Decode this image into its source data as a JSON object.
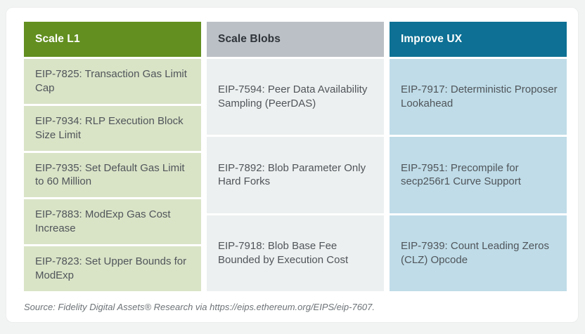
{
  "page": {
    "background": "#f2f4f3",
    "card_background": "#ffffff"
  },
  "columns": [
    {
      "header": "Scale L1",
      "header_bg": "#628f1f",
      "header_color": "#ffffff",
      "cell_bg": "#d9e3c6",
      "items": [
        "EIP-7825: Transaction Gas Limit Cap",
        "EIP-7934: RLP Execution Block Size Limit",
        "EIP-7935: Set Default Gas Limit to 60 Million",
        "EIP-7883: ModExp Gas Cost Increase",
        "EIP-7823: Set Upper Bounds for ModExp"
      ]
    },
    {
      "header": "Scale Blobs",
      "header_bg": "#bbc0c6",
      "header_color": "#2f343a",
      "cell_bg": "#edf0f0",
      "items": [
        "EIP-7594: Peer Data Availability Sampling (PeerDAS)",
        "EIP-7892: Blob Parameter Only Hard Forks",
        "EIP-7918: Blob Base Fee Bounded by Execution Cost"
      ]
    },
    {
      "header": "Improve UX",
      "header_bg": "#0d7094",
      "header_color": "#ffffff",
      "cell_bg": "#bfdce8",
      "items": [
        "EIP-7917: Deterministic Proposer Lookahead",
        "EIP-7951: Precompile for secp256r1 Curve Support",
        "EIP-7939: Count Leading Zeros (CLZ) Opcode"
      ]
    }
  ],
  "source_note": "Source: Fidelity Digital Assets® Research via https://eips.ethereum.org/EIPS/eip-7607.",
  "text_color": "#50555a"
}
